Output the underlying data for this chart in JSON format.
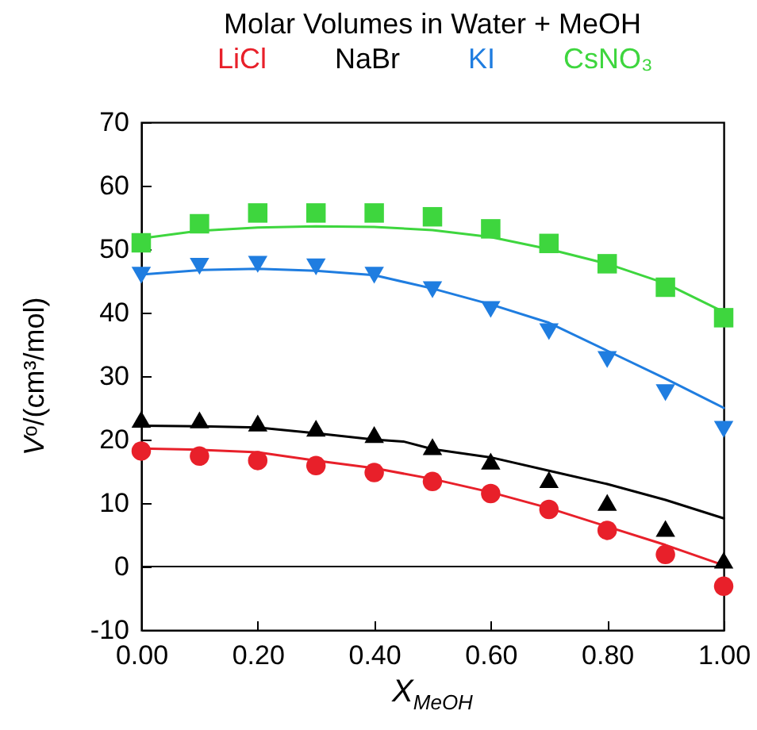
{
  "chart_data": {
    "type": "scatter",
    "title": "Molar Volumes in Water + MeOH",
    "xlabel": "X$_{MeOH}$",
    "ylabel": "Vᵒ/(cm³/mol)",
    "x": [
      0,
      0.1,
      0.2,
      0.3,
      0.4,
      0.5,
      0.6,
      0.7,
      0.8,
      0.9,
      1.0
    ],
    "xlim": [
      0,
      1
    ],
    "ylim": [
      -10,
      70
    ],
    "xticks": [
      {
        "value": 0,
        "label": "0.00"
      },
      {
        "value": 0.2,
        "label": "0.20"
      },
      {
        "value": 0.4,
        "label": "0.40"
      },
      {
        "value": 0.6,
        "label": "0.60"
      },
      {
        "value": 0.8,
        "label": "0.80"
      },
      {
        "value": 1.0,
        "label": "1.00"
      }
    ],
    "yticks": [
      -10,
      0,
      10,
      20,
      30,
      40,
      50,
      60,
      70
    ],
    "legend": "top",
    "ref_lines": [
      {
        "axis": "y",
        "value": 0,
        "color": "#000000"
      }
    ],
    "series": [
      {
        "name": "LiCl",
        "type": "scatter",
        "marker": "circle",
        "color": "#e8202a",
        "values": [
          18.2,
          17.4,
          16.7,
          15.9,
          14.8,
          13.4,
          11.5,
          9.0,
          5.7,
          1.9,
          -3.1
        ]
      },
      {
        "name": "NaBr",
        "type": "scatter",
        "marker": "triangle",
        "color": "#000000",
        "values": [
          23.2,
          23.1,
          22.6,
          21.8,
          20.8,
          18.9,
          16.6,
          13.7,
          10.1,
          6.0,
          1.0
        ]
      },
      {
        "name": "KI",
        "type": "scatter",
        "marker": "triangle-down",
        "color": "#1f7de0",
        "values": [
          45.9,
          47.3,
          47.6,
          47.2,
          45.9,
          43.6,
          40.5,
          37.0,
          32.6,
          27.4,
          21.6
        ]
      },
      {
        "name": "CsNO₃",
        "type": "scatter",
        "marker": "square",
        "color": "#3ed63e",
        "values": [
          51.0,
          54.0,
          55.7,
          55.7,
          55.7,
          55.1,
          53.2,
          50.9,
          47.7,
          44.0,
          39.2
        ]
      },
      {
        "type": "line",
        "marker": "none",
        "color": "#e8202a",
        "x": [
          0,
          0.1,
          0.2,
          0.3,
          0.4,
          0.5,
          0.6,
          0.7,
          0.8,
          0.9,
          1.0
        ],
        "values": [
          18.6,
          18.4,
          18.0,
          16.7,
          15.5,
          13.8,
          11.7,
          9.2,
          6.3,
          3.4,
          0.2
        ]
      },
      {
        "type": "line",
        "marker": "none",
        "color": "#000000",
        "x": [
          0,
          0.1,
          0.2,
          0.3,
          0.4,
          0.45,
          0.5,
          0.6,
          0.7,
          0.8,
          0.9,
          1.0
        ],
        "values": [
          22.2,
          22.1,
          21.9,
          21.0,
          20.0,
          19.7,
          18.5,
          17.2,
          15.1,
          13.0,
          10.5,
          7.6
        ]
      },
      {
        "type": "line",
        "marker": "none",
        "color": "#1f7de0",
        "x": [
          0,
          0.1,
          0.2,
          0.3,
          0.4,
          0.5,
          0.6,
          0.7,
          0.8,
          0.9,
          1.0
        ],
        "values": [
          46.0,
          46.7,
          46.9,
          46.6,
          45.9,
          43.8,
          41.3,
          38.4,
          34.0,
          29.6,
          25.0
        ]
      },
      {
        "type": "line",
        "marker": "none",
        "color": "#3ed63e",
        "x": [
          0,
          0.1,
          0.2,
          0.3,
          0.4,
          0.5,
          0.6,
          0.7,
          0.8,
          0.9,
          1.0
        ],
        "values": [
          51.7,
          52.9,
          53.4,
          53.6,
          53.5,
          53.0,
          51.9,
          50.0,
          47.7,
          44.6,
          40.1
        ]
      }
    ]
  }
}
